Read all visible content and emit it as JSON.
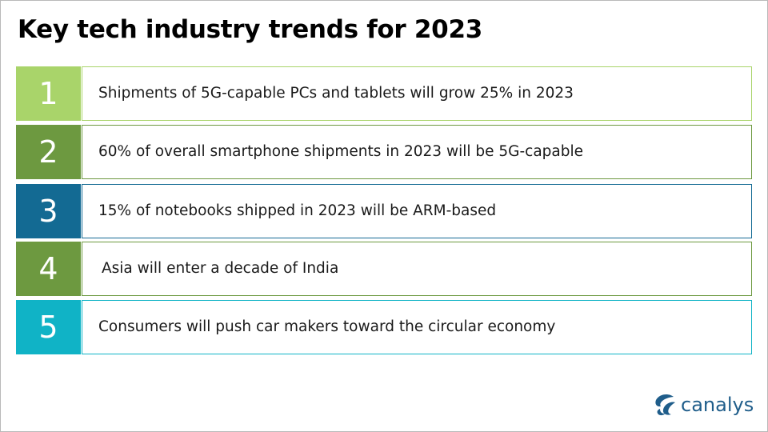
{
  "slide": {
    "title": "Key tech industry trends for 2023"
  },
  "trends": [
    {
      "number": "1",
      "text": "Shipments of 5G-capable PCs and tablets will grow 25% in 2023",
      "color": "#a9d46a"
    },
    {
      "number": "2",
      "text": "60% of overall smartphone shipments in 2023 will be 5G-capable",
      "color": "#6d9940"
    },
    {
      "number": "3",
      "text": "15% of notebooks shipped in 2023 will be ARM-based",
      "color": "#136a93"
    },
    {
      "number": "4",
      "text": "Asia will enter a decade of India",
      "color": "#6d9940"
    },
    {
      "number": "5",
      "text": "Consumers will push car makers toward the circular economy",
      "color": "#10b3c6"
    }
  ],
  "logo": {
    "text": "canalys",
    "icon": "canalys-logo-icon",
    "color": "#1f5d8a"
  }
}
